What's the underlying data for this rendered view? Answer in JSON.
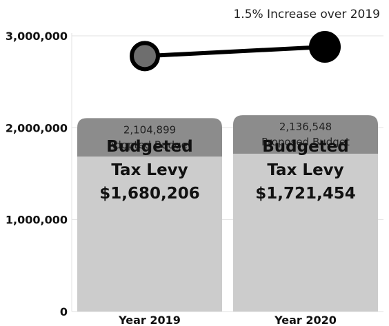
{
  "chart_data": {
    "type": "bar",
    "categories": [
      "Year 2019",
      "Year 2020"
    ],
    "ylim": [
      0,
      3000000
    ],
    "yticks": [
      {
        "value": 0,
        "label": "0"
      },
      {
        "value": 1000000,
        "label": "1,000,000"
      },
      {
        "value": 2000000,
        "label": "2,000,000"
      },
      {
        "value": 3000000,
        "label": "3,000,000"
      }
    ],
    "grid": true,
    "bars": [
      {
        "category": "Year 2019",
        "total": 2104899,
        "total_label": "2,104,899",
        "budget_label": "Adopted Budget",
        "levy": 1680206,
        "levy_lines": [
          "Budgeted",
          "Tax Levy",
          "$1,680,206"
        ]
      },
      {
        "category": "Year 2020",
        "total": 2136548,
        "total_label": "2,136,548",
        "budget_label": "Proposed Budget",
        "levy": 1721454,
        "levy_lines": [
          "Budgeted",
          "Tax Levy",
          "$1,721,454"
        ]
      }
    ],
    "trend_line": {
      "values": [
        2780000,
        2880000
      ],
      "point_colors": [
        "#6e6e6e",
        "#000000"
      ]
    },
    "annotation": "1.5%  Increase over 2019",
    "colors": {
      "bar_body": "#cccccc",
      "bar_cap": "#8c8c8c",
      "grid": "#e2e2e2",
      "line": "#000000"
    }
  }
}
